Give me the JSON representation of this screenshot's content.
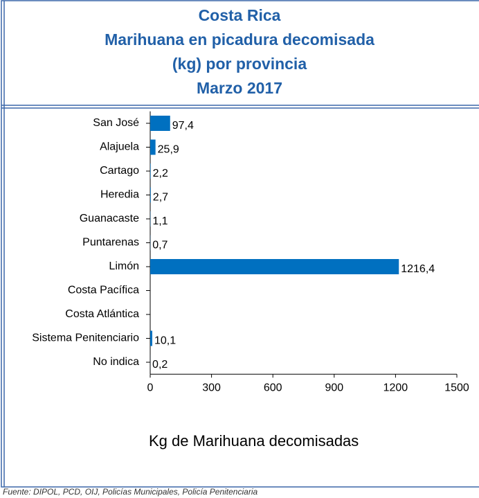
{
  "chart_data": {
    "type": "barh",
    "title": [
      "Costa Rica",
      "Marihuana en picadura decomisada",
      "(kg) por provincia",
      "Marzo  2017"
    ],
    "categories": [
      "San José",
      "Alajuela",
      "Cartago",
      "Heredia",
      "Guanacaste",
      "Puntarenas",
      "Limón",
      "Costa Pacífica",
      "Costa Atlántica",
      "Sistema Penitenciario",
      "No indica"
    ],
    "values": [
      97.4,
      25.9,
      2.2,
      2.7,
      1.1,
      0.7,
      1216.4,
      null,
      null,
      10.1,
      0.2
    ],
    "value_labels": [
      "97,4",
      "25,9",
      "2,2",
      "2,7",
      "1,1",
      "0,7",
      "1216,4",
      null,
      null,
      "10,1",
      "0,2"
    ],
    "color": "#0070c0",
    "xlim": [
      0,
      1500
    ],
    "xticks": [
      0,
      300,
      600,
      900,
      1200,
      1500
    ],
    "xlabel": "Kg de Marihuana decomisadas",
    "source": "Fuente: DIPOL, PCD, OIJ, Policías Municipales, Policía Penitenciaria"
  }
}
